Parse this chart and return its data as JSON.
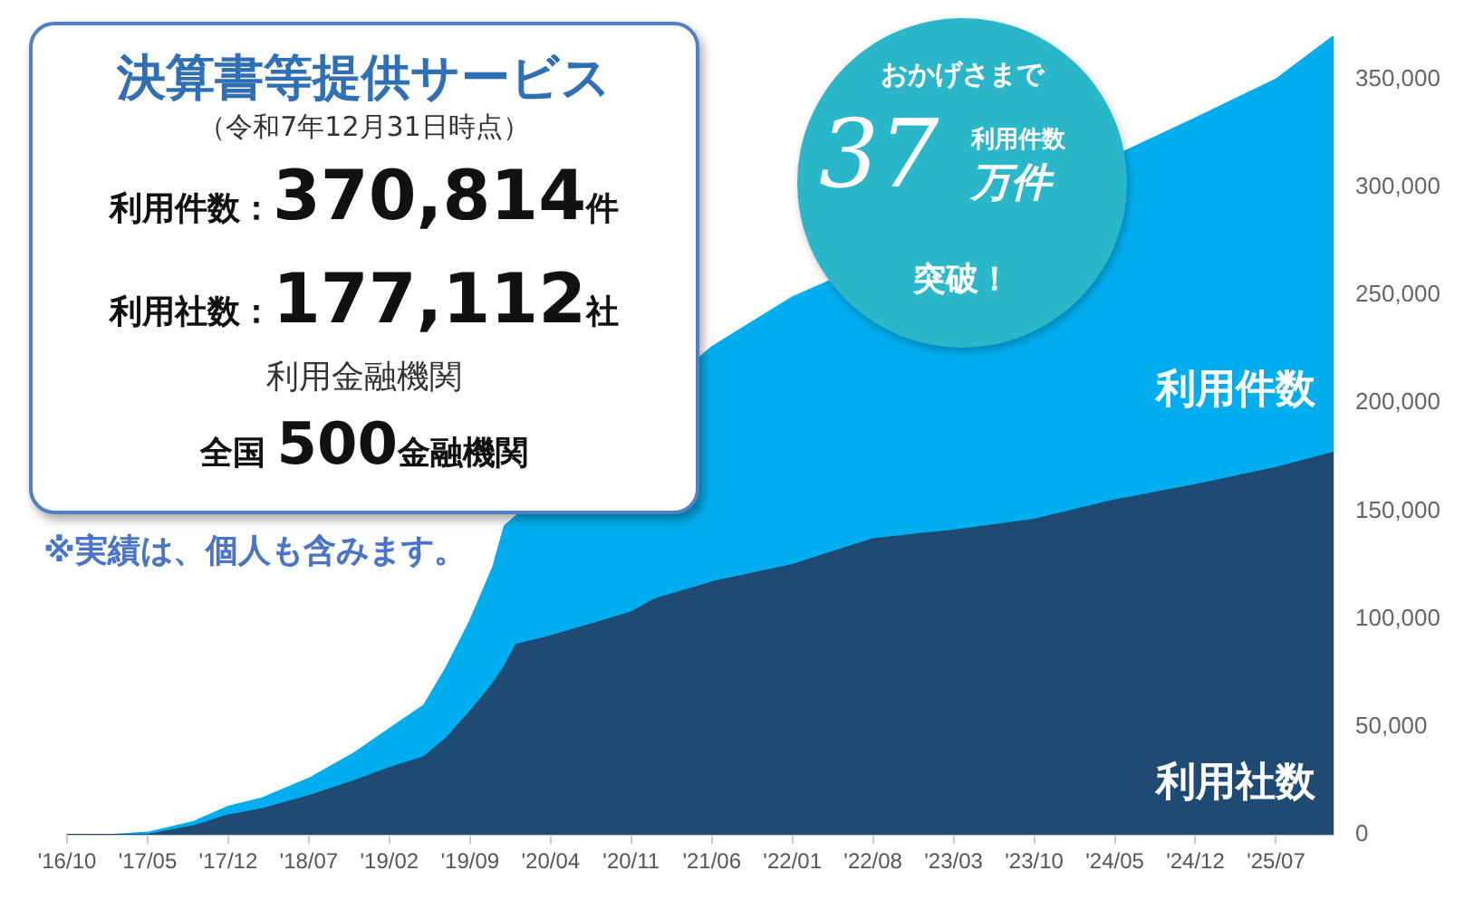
{
  "chart_data": {
    "type": "area",
    "title": "決算書等提供サービス",
    "subtitle": "（令和7年12月31日時点）",
    "annotations": [
      "利用件数：370,814件",
      "利用社数：177,112社",
      "利用金融機関",
      "全国 500金融機関",
      "※実績は、個人も含みます。",
      "おかげさまで",
      "37",
      "利用件数",
      "万件",
      "突破！"
    ],
    "x": [
      "2016-10",
      "2017-02",
      "2017-05",
      "2017-09",
      "2017-12",
      "2018-03",
      "2018-07",
      "2018-11",
      "2019-02",
      "2019-05",
      "2019-07",
      "2019-09",
      "2019-11",
      "2019-12",
      "2020-01",
      "2020-04",
      "2020-11",
      "2021-01",
      "2021-06",
      "2022-01",
      "2022-08",
      "2023-03",
      "2023-10",
      "2024-05",
      "2024-06",
      "2024-12",
      "2025-07",
      "2025-12"
    ],
    "series": [
      {
        "name": "利用件数",
        "color": "#00aeef",
        "values": [
          0,
          0,
          1000,
          6000,
          13000,
          17000,
          26000,
          38000,
          49000,
          60000,
          78000,
          99000,
          124000,
          143000,
          null,
          null,
          null,
          null,
          226000,
          249000,
          null,
          null,
          null,
          null,
          317000,
          332000,
          350000,
          370000
        ]
      },
      {
        "name": "利用社数",
        "color": "#1f4a73",
        "values": [
          0,
          0,
          0,
          4000,
          9000,
          12000,
          18000,
          25000,
          31000,
          36000,
          45000,
          57000,
          70000,
          78000,
          88000,
          92000,
          103000,
          109000,
          117000,
          125000,
          137000,
          141000,
          146000,
          155000,
          156000,
          162000,
          170000,
          177000
        ]
      }
    ],
    "xlim": [
      "2016-10",
      "2025-12"
    ],
    "xticks": [
      {
        "value": "2016-10",
        "label": "'16/10"
      },
      {
        "value": "2017-05",
        "label": "'17/05"
      },
      {
        "value": "2017-12",
        "label": "'17/12"
      },
      {
        "value": "2018-07",
        "label": "'18/07"
      },
      {
        "value": "2019-02",
        "label": "'19/02"
      },
      {
        "value": "2019-09",
        "label": "'19/09"
      },
      {
        "value": "2020-04",
        "label": "'20/04"
      },
      {
        "value": "2020-11",
        "label": "'20/11"
      },
      {
        "value": "2021-06",
        "label": "'21/06"
      },
      {
        "value": "2022-01",
        "label": "'22/01"
      },
      {
        "value": "2022-08",
        "label": "'22/08"
      },
      {
        "value": "2023-03",
        "label": "'23/03"
      },
      {
        "value": "2023-10",
        "label": "'23/10"
      },
      {
        "value": "2024-05",
        "label": "'24/05"
      },
      {
        "value": "2024-12",
        "label": "'24/12"
      },
      {
        "value": "2025-07",
        "label": "'25/07"
      }
    ],
    "ylim": [
      0,
      370000
    ],
    "yticks": [
      0,
      {
        "value": 50000,
        "label": "50,000"
      },
      {
        "value": 100000,
        "label": "100,000"
      },
      {
        "value": 150000,
        "label": "150,000"
      },
      {
        "value": 200000,
        "label": "200,000"
      },
      {
        "value": 250000,
        "label": "250,000"
      },
      {
        "value": 300000,
        "label": "300,000"
      },
      {
        "value": 350000,
        "label": "350,000"
      }
    ],
    "grid": false,
    "legend": false,
    "marker": "none"
  }
}
